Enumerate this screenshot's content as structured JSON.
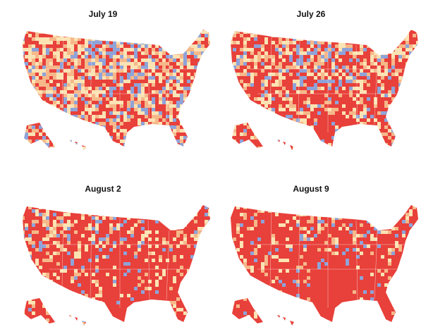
{
  "panels": [
    {
      "title": "July 19",
      "red_share": 0.38
    },
    {
      "title": "July 26",
      "red_share": 0.55
    },
    {
      "title": "August 2",
      "red_share": 0.7
    },
    {
      "title": "August 9",
      "red_share": 0.82
    }
  ],
  "colors": {
    "high": "#e8403a",
    "substantial": "#f6b889",
    "moderate": "#fbe3b4",
    "low": "#8fa3d9",
    "border": "#ffffff"
  }
}
